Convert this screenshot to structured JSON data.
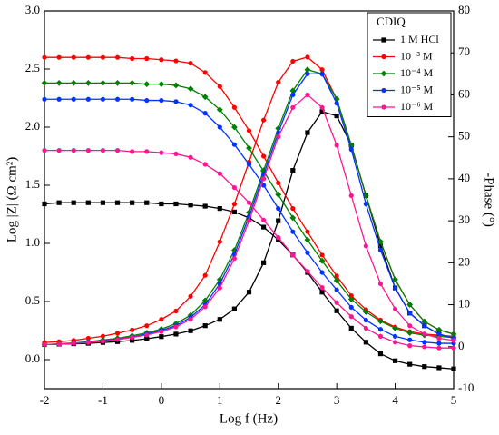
{
  "chart_data": {
    "type": "bode",
    "xlabel": "Log f (Hz)",
    "ylabel": "Log |Z| (Ω cm²)",
    "y2label": "-Phase (°)",
    "legend_title": "CDIQ",
    "legend": "upper right",
    "x": [
      -2,
      -1.75,
      -1.5,
      -1.25,
      -1,
      -0.75,
      -0.5,
      -0.25,
      0,
      0.25,
      0.5,
      0.75,
      1,
      1.25,
      1.5,
      1.75,
      2,
      2.25,
      2.5,
      2.75,
      3,
      3.25,
      3.5,
      3.75,
      4,
      4.25,
      4.5,
      4.75,
      5
    ],
    "xlim": [
      -2,
      5
    ],
    "xticks": [
      -2,
      -1,
      0,
      1,
      2,
      3,
      4,
      5
    ],
    "ylim": [
      -0.25,
      3.0
    ],
    "yticks": [
      {
        "value": 0,
        "label": "0.0"
      },
      0.5,
      {
        "value": 1,
        "label": "1.0"
      },
      1.5,
      {
        "value": 2,
        "label": "2.0"
      },
      2.5,
      {
        "value": 3,
        "label": "3.0"
      }
    ],
    "y2lim": [
      -10,
      80
    ],
    "y2ticks": [
      -10,
      0,
      10,
      20,
      30,
      40,
      50,
      60,
      70,
      80
    ],
    "series": [
      {
        "name": "1 M HCl",
        "color": "#000000",
        "marker": "square",
        "values": [
          1.34,
          1.35,
          1.35,
          1.35,
          1.35,
          1.35,
          1.35,
          1.35,
          1.34,
          1.34,
          1.33,
          1.32,
          1.3,
          1.27,
          1.22,
          1.14,
          1.03,
          0.9,
          0.75,
          0.58,
          0.42,
          0.27,
          0.15,
          0.05,
          -0.01,
          -0.04,
          -0.06,
          -0.07,
          -0.08
        ],
        "phase": [
          0.5,
          0.6,
          0.7,
          0.8,
          1,
          1.2,
          1.5,
          1.9,
          2.4,
          3,
          3.8,
          5,
          6.5,
          9,
          13,
          20,
          30,
          42,
          51,
          56,
          55,
          48,
          36,
          24,
          14,
          8,
          5,
          3,
          2
        ]
      },
      {
        "name": "10⁻³ M",
        "color": "#ff0000",
        "marker": "circle",
        "values": [
          2.6,
          2.6,
          2.6,
          2.6,
          2.6,
          2.6,
          2.59,
          2.59,
          2.58,
          2.57,
          2.55,
          2.47,
          2.35,
          2.17,
          1.97,
          1.75,
          1.52,
          1.3,
          1.1,
          0.9,
          0.72,
          0.55,
          0.43,
          0.34,
          0.28,
          0.24,
          0.22,
          0.21,
          0.2
        ],
        "phase": [
          1,
          1.2,
          1.5,
          2,
          2.5,
          3.2,
          4,
          5,
          6.5,
          8.5,
          12,
          17,
          25,
          34,
          44,
          54,
          63,
          68,
          69,
          66,
          59,
          48,
          36,
          25,
          16,
          10,
          6,
          4,
          3
        ]
      },
      {
        "name": "10⁻⁴ M",
        "color": "#008000",
        "marker": "diamond",
        "values": [
          2.38,
          2.38,
          2.38,
          2.38,
          2.38,
          2.38,
          2.38,
          2.37,
          2.37,
          2.36,
          2.33,
          2.26,
          2.15,
          2.0,
          1.82,
          1.62,
          1.42,
          1.22,
          1.03,
          0.85,
          0.68,
          0.52,
          0.41,
          0.33,
          0.27,
          0.23,
          0.21,
          0.2,
          0.19
        ],
        "phase": [
          0.5,
          0.7,
          0.9,
          1.2,
          1.6,
          2,
          2.6,
          3.3,
          4.2,
          5.5,
          7.5,
          11,
          16,
          23,
          32,
          42,
          52,
          61,
          66,
          65,
          59,
          48,
          36,
          25,
          16,
          10,
          6,
          4,
          3
        ]
      },
      {
        "name": "10⁻⁵ M",
        "color": "#0033ff",
        "marker": "circle",
        "values": [
          2.24,
          2.24,
          2.24,
          2.24,
          2.24,
          2.24,
          2.24,
          2.23,
          2.23,
          2.22,
          2.19,
          2.12,
          2.0,
          1.85,
          1.68,
          1.5,
          1.3,
          1.1,
          0.92,
          0.75,
          0.6,
          0.45,
          0.34,
          0.26,
          0.2,
          0.17,
          0.15,
          0.14,
          0.14
        ],
        "phase": [
          0.5,
          0.6,
          0.8,
          1.1,
          1.4,
          1.8,
          2.3,
          3,
          3.9,
          5,
          7,
          10,
          15,
          22,
          31,
          41,
          51,
          60,
          65,
          65,
          58,
          47,
          34,
          23,
          14,
          8,
          5,
          3,
          2
        ]
      },
      {
        "name": "10⁻⁶ M",
        "color": "#ff1493",
        "marker": "circle",
        "values": [
          1.8,
          1.8,
          1.8,
          1.8,
          1.8,
          1.8,
          1.79,
          1.79,
          1.78,
          1.77,
          1.74,
          1.68,
          1.6,
          1.48,
          1.35,
          1.2,
          1.05,
          0.9,
          0.76,
          0.62,
          0.49,
          0.37,
          0.27,
          0.2,
          0.15,
          0.12,
          0.11,
          0.1,
          0.1
        ],
        "phase": [
          0.5,
          0.6,
          0.8,
          1,
          1.3,
          1.7,
          2.2,
          2.8,
          3.6,
          4.7,
          6.5,
          9.5,
          14,
          21,
          30,
          40,
          50,
          57,
          60,
          57,
          48,
          36,
          24,
          15,
          9,
          5,
          3,
          2,
          1.5
        ]
      }
    ]
  }
}
